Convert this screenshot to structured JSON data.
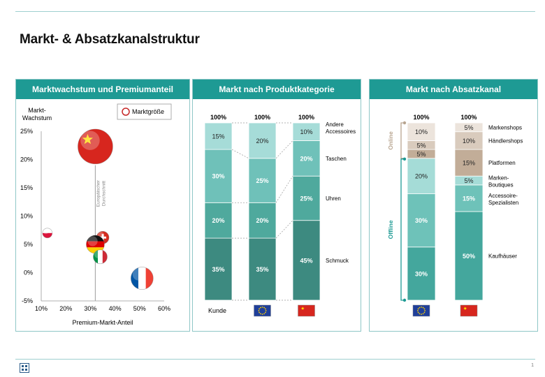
{
  "page": {
    "title": "Markt- & Absatzkanalstruktur",
    "page_number": "1"
  },
  "chart_data": [
    {
      "type": "scatter",
      "title": "Marktwachstum und Premiumanteil",
      "ylabel_line1": "Markt-",
      "ylabel_line2": "Wachstum",
      "xlabel": "Premium-Markt-Anteil",
      "legend": "Marktgröße",
      "avg_label_line1": "Europäischer",
      "avg_label_line2": "Durchschnitt",
      "avg_x": 32,
      "xlim": [
        10,
        60
      ],
      "ylim": [
        -5,
        25
      ],
      "x_ticks": [
        10,
        20,
        30,
        40,
        50,
        60
      ],
      "y_ticks": [
        -5,
        0,
        5,
        10,
        15,
        20,
        25
      ],
      "x_tick_labels": [
        "10%",
        "20%",
        "30%",
        "40%",
        "50%",
        "60%"
      ],
      "y_tick_labels": [
        "-5%",
        "0%",
        "5%",
        "10%",
        "15%",
        "20%",
        "25%"
      ],
      "points": [
        {
          "country": "China",
          "flag": "cn",
          "x": 32,
          "y": 22.3,
          "size": 25
        },
        {
          "country": "Polen",
          "flag": "pl",
          "x": 12.5,
          "y": 7,
          "size": 7
        },
        {
          "country": "Schweiz",
          "flag": "ch",
          "x": 35,
          "y": 6.2,
          "size": 9
        },
        {
          "country": "Deutschland",
          "flag": "de",
          "x": 32,
          "y": 5,
          "size": 13
        },
        {
          "country": "Italien",
          "flag": "it",
          "x": 34,
          "y": 2.8,
          "size": 10
        },
        {
          "country": "Frankreich",
          "flag": "fr",
          "x": 51,
          "y": -1,
          "size": 16
        }
      ]
    },
    {
      "type": "bar",
      "stacked": true,
      "title": "Markt nach Produktkategorie",
      "categories": [
        "Kunde",
        "EU",
        "China"
      ],
      "category_flags": [
        "",
        "eu",
        "cn"
      ],
      "category_labels": [
        "Kunde",
        "",
        ""
      ],
      "totals": [
        "100%",
        "100%",
        "100%"
      ],
      "series": [
        {
          "name": "Schmuck",
          "values": [
            35,
            35,
            45
          ],
          "labels": [
            "35%",
            "35%",
            "45%"
          ],
          "color": "#3d8a80"
        },
        {
          "name": "Uhren",
          "values": [
            20,
            20,
            25
          ],
          "labels": [
            "20%",
            "20%",
            "25%"
          ],
          "color": "#4fa99d"
        },
        {
          "name": "Taschen",
          "values": [
            30,
            25,
            20
          ],
          "labels": [
            "30%",
            "25%",
            "20%"
          ],
          "color": "#6fc1b9"
        },
        {
          "name": "Andere Accessoires",
          "name_line1": "Andere",
          "name_line2": "Accessoires",
          "values": [
            15,
            20,
            10
          ],
          "labels": [
            "15%",
            "20%",
            "10%"
          ],
          "color": "#a6dcd8"
        }
      ]
    },
    {
      "type": "bar",
      "stacked": true,
      "title": "Markt nach Absatzkanal",
      "categories": [
        "EU",
        "China"
      ],
      "category_flags": [
        "eu",
        "cn"
      ],
      "totals": [
        "100%",
        "100%"
      ],
      "group_online": "Online",
      "group_offline": "Offline",
      "series": [
        {
          "name": "Kaufhäuser",
          "values": [
            30,
            50
          ],
          "labels": [
            "30%",
            "50%"
          ],
          "color": "#44a79d"
        },
        {
          "name": "Accessoire-Spezialisten",
          "name_line1": "Accessoire-",
          "name_line2": "Spezialisten",
          "values": [
            30,
            15
          ],
          "labels": [
            "30%",
            "15%"
          ],
          "color": "#6ec2b9"
        },
        {
          "name": "Marken-Boutiques",
          "name_line1": "Marken-",
          "name_line2": "Boutiques",
          "values": [
            20,
            5
          ],
          "labels": [
            "20%",
            "5%"
          ],
          "color": "#a5dcd7"
        },
        {
          "name": "Platformen",
          "values": [
            5,
            15
          ],
          "labels": [
            "5%",
            "15%"
          ],
          "color": "#c2ad98"
        },
        {
          "name": "Händlershops",
          "values": [
            5,
            10
          ],
          "labels": [
            "5%",
            "10%"
          ],
          "color": "#d9cbbd"
        },
        {
          "name": "Markenshops",
          "values": [
            10,
            5
          ],
          "labels": [
            "10%",
            "5%"
          ],
          "color": "#ece4dc"
        }
      ]
    }
  ],
  "colors": {
    "header": "#1e9a94",
    "border": "#8fc7c7",
    "online_bracket": "#b8a590",
    "offline_bracket": "#1e9a94"
  }
}
